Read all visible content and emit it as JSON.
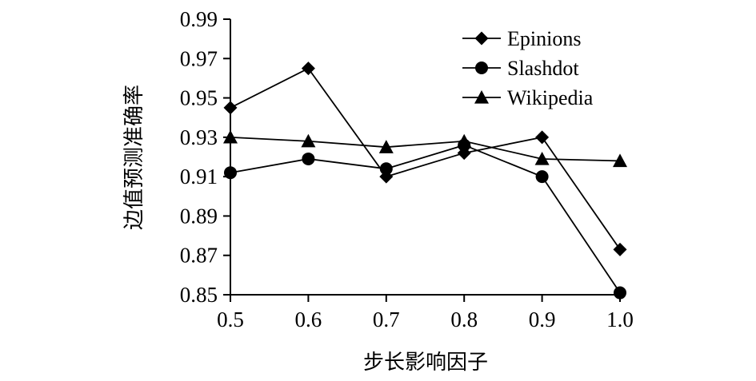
{
  "chart_data": {
    "type": "line",
    "xlabel": "步长影响因子",
    "ylabel": "边值预测准确率",
    "x": [
      0.5,
      0.6,
      0.7,
      0.8,
      0.9,
      1.0
    ],
    "x_tick_labels": [
      "0.5",
      "0.6",
      "0.7",
      "0.8",
      "0.9",
      "1.0"
    ],
    "y_ticks": [
      0.85,
      0.87,
      0.89,
      0.91,
      0.93,
      0.95,
      0.97,
      0.99
    ],
    "y_tick_labels": [
      "0.85",
      "0.87",
      "0.89",
      "0.91",
      "0.93",
      "0.95",
      "0.97",
      "0.99"
    ],
    "xlim": [
      0.5,
      1.0
    ],
    "ylim": [
      0.85,
      0.99
    ],
    "grid": false,
    "legend_position": "top-right",
    "series": [
      {
        "name": "Epinions",
        "marker": "diamond",
        "values": [
          0.945,
          0.965,
          0.91,
          0.922,
          0.93,
          0.873
        ]
      },
      {
        "name": "Slashdot",
        "marker": "circle",
        "values": [
          0.912,
          0.919,
          0.914,
          0.926,
          0.91,
          0.851
        ]
      },
      {
        "name": "Wikipedia",
        "marker": "triangle",
        "values": [
          0.93,
          0.928,
          0.925,
          0.928,
          0.919,
          0.918
        ]
      }
    ],
    "colors": {
      "line": "#000000",
      "marker": "#000000",
      "axis": "#000000"
    }
  }
}
